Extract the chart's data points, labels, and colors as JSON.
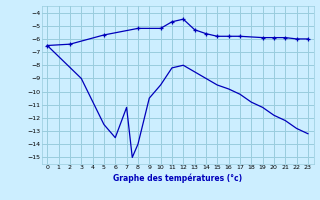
{
  "title": "Graphe des températures (°c)",
  "bg_color": "#cceeff",
  "grid_color": "#99ccdd",
  "line_color": "#0000bb",
  "xlim": [
    -0.5,
    23.5
  ],
  "ylim": [
    -15.5,
    -3.5
  ],
  "yticks": [
    -15,
    -14,
    -13,
    -12,
    -11,
    -10,
    -9,
    -8,
    -7,
    -6,
    -5,
    -4
  ],
  "xticks": [
    0,
    1,
    2,
    3,
    4,
    5,
    6,
    7,
    8,
    9,
    10,
    11,
    12,
    13,
    14,
    15,
    16,
    17,
    18,
    19,
    20,
    21,
    22,
    23
  ],
  "line1_x": [
    0,
    2,
    5,
    8,
    10,
    11,
    12,
    13,
    14,
    15,
    16,
    17,
    19,
    20,
    21,
    22,
    23
  ],
  "line1_y": [
    -6.5,
    -6.4,
    -5.7,
    -5.2,
    -5.2,
    -4.7,
    -4.5,
    -5.3,
    -5.6,
    -5.8,
    -5.8,
    -5.8,
    -5.9,
    -5.9,
    -5.9,
    -6.0,
    -6.0
  ],
  "line2_x": [
    0,
    3,
    5,
    6,
    7,
    7.5,
    8,
    9,
    10,
    11,
    12,
    13,
    14,
    15,
    16,
    17,
    18,
    19,
    20,
    21,
    22,
    23
  ],
  "line2_y": [
    -6.5,
    -9.0,
    -12.5,
    -13.5,
    -11.2,
    -15.0,
    -14.0,
    -10.5,
    -9.5,
    -8.2,
    -8.0,
    -8.5,
    -9.0,
    -9.5,
    -9.8,
    -10.2,
    -10.8,
    -11.2,
    -11.8,
    -12.2,
    -12.8,
    -13.2
  ]
}
